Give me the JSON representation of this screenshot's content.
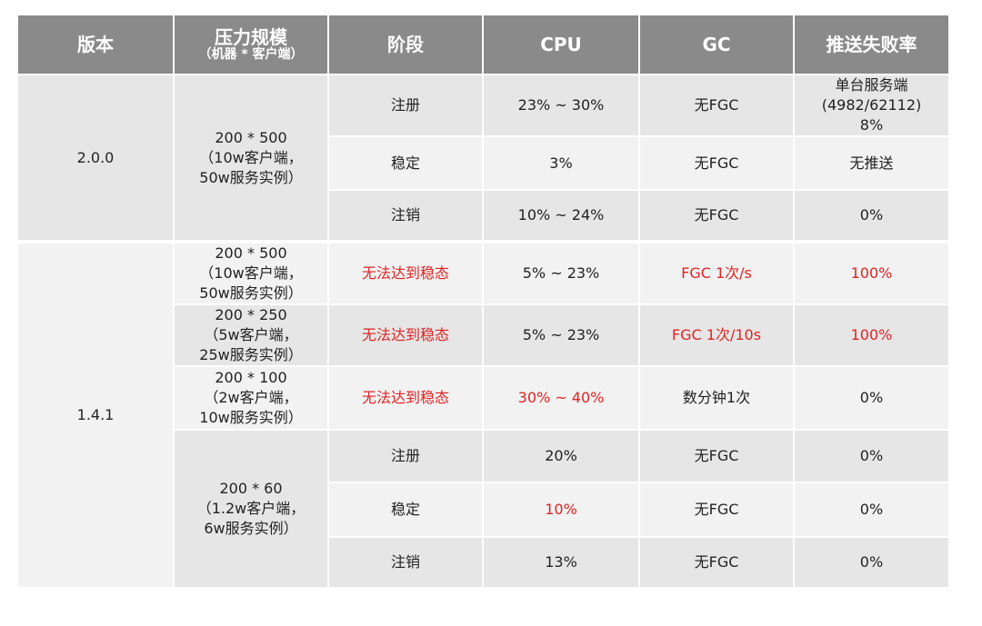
{
  "table": {
    "header": [
      "版本",
      "压力规模",
      "阶段",
      "CPU",
      "GC",
      "推送失败率"
    ],
    "header_sub": "（机器 * 客户端）",
    "highlight_color": "#e02424",
    "groups": [
      {
        "version": "2.0.0",
        "scales": [
          {
            "scale": [
              "200 * 500",
              "（10w客户端，",
              "50w服务实例）"
            ],
            "rows": [
              {
                "stage": "注册",
                "cpu": "23% ~ 30%",
                "gc": "无FGC",
                "fail": [
                  "单台服务端",
                  "(4982/62112)",
                  "8%"
                ]
              },
              {
                "stage": "稳定",
                "cpu": "3%",
                "gc": "无FGC",
                "fail": "无推送"
              },
              {
                "stage": "注销",
                "cpu": "10% ~ 24%",
                "gc": "无FGC",
                "fail": "0%"
              }
            ]
          }
        ]
      },
      {
        "version": "1.4.1",
        "scales": [
          {
            "scale": [
              "200 * 500",
              "（10w客户端，",
              "50w服务实例）"
            ],
            "rows": [
              {
                "stage": "无法达到稳态",
                "cpu": "5% ~ 23%",
                "gc": "FGC 1次/s",
                "fail": "100%",
                "highlight": [
                  "stage",
                  "gc",
                  "fail"
                ]
              }
            ]
          },
          {
            "scale": [
              "200 * 250",
              "（5w客户端，",
              "25w服务实例）"
            ],
            "rows": [
              {
                "stage": "无法达到稳态",
                "cpu": "5% ~ 23%",
                "gc": "FGC 1次/10s",
                "fail": "100%",
                "highlight": [
                  "stage",
                  "gc",
                  "fail"
                ]
              }
            ]
          },
          {
            "scale": [
              "200 * 100",
              "（2w客户端，",
              "10w服务实例）"
            ],
            "rows": [
              {
                "stage": "无法达到稳态",
                "cpu": "30% ~ 40%",
                "gc": "数分钟1次",
                "fail": "0%",
                "highlight": [
                  "stage",
                  "cpu"
                ]
              }
            ]
          },
          {
            "scale": [
              "200 * 60",
              "（1.2w客户端，",
              "6w服务实例）"
            ],
            "rows": [
              {
                "stage": "注册",
                "cpu": "20%",
                "gc": "无FGC",
                "fail": "0%"
              },
              {
                "stage": "稳定",
                "cpu": "10%",
                "gc": "无FGC",
                "fail": "0%",
                "highlight": [
                  "cpu"
                ]
              },
              {
                "stage": "注销",
                "cpu": "13%",
                "gc": "无FGC",
                "fail": "0%"
              }
            ]
          }
        ]
      }
    ]
  }
}
